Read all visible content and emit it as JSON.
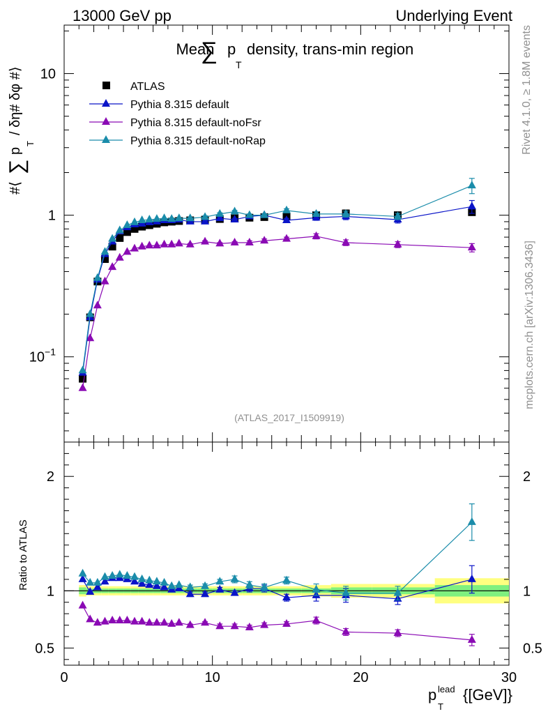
{
  "header": {
    "left": "13000 GeV pp",
    "right": "Underlying Event"
  },
  "side_labels": {
    "rivet": "Rivet 4.1.0, ≥ 1.8M events",
    "mcplots": "mcplots.cern.ch [arXiv:1306.3436]"
  },
  "colors": {
    "atlas": "#000000",
    "default": "#0a14c8",
    "nofsr": "#8a0ab4",
    "norap": "#1a8caa",
    "band_inner": "#7ff07f",
    "band_outer": "#ffff80"
  },
  "chart_data": [
    {
      "panel": "main",
      "type": "scatter",
      "title_prefix": "Mean",
      "title_sum": "∑",
      "title_p": "p",
      "title_sub": "T",
      "title_suffix": "density, trans-min region",
      "ylabel_parts": [
        "#⟨",
        "∑",
        "p",
        "T",
        "/ δη# δφ #⟩"
      ],
      "yscale": "log",
      "ylim": [
        0.025,
        22
      ],
      "xlim": [
        0,
        30
      ],
      "yticks": [
        {
          "v": 10,
          "base": "10",
          "exp": ""
        },
        {
          "v": 1,
          "base": "1",
          "exp": ""
        },
        {
          "v": 0.1,
          "base": "10",
          "exp": "−1"
        }
      ],
      "watermark": "(ATLAS_2017_I1509919)",
      "legend": [
        "ATLAS",
        "Pythia 8.315 default",
        "Pythia 8.315 default-noFsr",
        "Pythia 8.315 default-noRap"
      ],
      "x": [
        1.25,
        1.75,
        2.25,
        2.75,
        3.25,
        3.75,
        4.25,
        4.75,
        5.25,
        5.75,
        6.25,
        6.75,
        7.25,
        7.75,
        8.5,
        9.5,
        10.5,
        11.5,
        12.5,
        13.5,
        15,
        17,
        19,
        22.5,
        27.5
      ],
      "series": [
        {
          "name": "ATLAS",
          "key": "atlas",
          "marker": "square",
          "values": [
            0.07,
            0.19,
            0.34,
            0.49,
            0.6,
            0.69,
            0.76,
            0.8,
            0.83,
            0.85,
            0.87,
            0.89,
            0.9,
            0.91,
            0.92,
            0.93,
            0.94,
            0.95,
            0.96,
            0.97,
            0.98,
            1.0,
            1.03,
            1.0,
            1.05
          ]
        },
        {
          "name": "Pythia 8.315 default",
          "key": "default",
          "marker": "triangle",
          "values": [
            0.077,
            0.19,
            0.35,
            0.53,
            0.65,
            0.77,
            0.82,
            0.86,
            0.87,
            0.89,
            0.9,
            0.92,
            0.92,
            0.93,
            0.9,
            0.9,
            0.95,
            0.93,
            0.98,
            1.0,
            0.92,
            0.96,
            0.98,
            0.93,
            1.15
          ],
          "errors": [
            0,
            0,
            0,
            0,
            0,
            0,
            0,
            0,
            0,
            0,
            0,
            0,
            0,
            0,
            0.01,
            0.02,
            0.02,
            0.02,
            0.02,
            0.02,
            0.03,
            0.04,
            0.05,
            0.05,
            0.12
          ]
        },
        {
          "name": "Pythia 8.315 default-noFsr",
          "key": "nofsr",
          "marker": "triangle",
          "values": [
            0.06,
            0.135,
            0.23,
            0.34,
            0.43,
            0.5,
            0.55,
            0.58,
            0.6,
            0.61,
            0.61,
            0.62,
            0.62,
            0.63,
            0.62,
            0.65,
            0.63,
            0.64,
            0.64,
            0.66,
            0.68,
            0.71,
            0.64,
            0.62,
            0.59
          ],
          "errors": [
            0,
            0,
            0,
            0,
            0,
            0,
            0,
            0,
            0,
            0,
            0,
            0,
            0,
            0,
            0.01,
            0.01,
            0.01,
            0.01,
            0.02,
            0.02,
            0.02,
            0.03,
            0.03,
            0.03,
            0.04
          ]
        },
        {
          "name": "Pythia 8.315 default-noRap",
          "key": "norap",
          "marker": "triangle",
          "values": [
            0.08,
            0.2,
            0.36,
            0.55,
            0.68,
            0.78,
            0.85,
            0.89,
            0.92,
            0.93,
            0.94,
            0.95,
            0.94,
            0.95,
            0.95,
            0.97,
            1.02,
            1.06,
            1.0,
            1.0,
            1.08,
            1.02,
            1.02,
            0.98,
            1.62
          ],
          "errors": [
            0,
            0,
            0,
            0,
            0,
            0,
            0,
            0,
            0,
            0,
            0,
            0,
            0,
            0,
            0.01,
            0.02,
            0.02,
            0.02,
            0.02,
            0.02,
            0.03,
            0.04,
            0.05,
            0.05,
            0.2
          ]
        }
      ]
    },
    {
      "panel": "ratio",
      "type": "scatter",
      "ylabel": "Ratio to ATLAS",
      "yscale": "linear",
      "ylim": [
        0.35,
        2.3
      ],
      "xlim": [
        0,
        30
      ],
      "xlabel_p": "p",
      "xlabel_sup": "lead",
      "xlabel_sub": "T",
      "xlabel_unit": "{[GeV]}",
      "xticks": [
        0,
        10,
        20,
        30
      ],
      "yticks": [
        0.5,
        1,
        2
      ],
      "x": [
        1.25,
        1.75,
        2.25,
        2.75,
        3.25,
        3.75,
        4.25,
        4.75,
        5.25,
        5.75,
        6.25,
        6.75,
        7.25,
        7.75,
        8.5,
        9.5,
        10.5,
        11.5,
        12.5,
        13.5,
        15,
        17,
        19,
        22.5,
        27.5
      ],
      "band_inner": [
        0.03,
        0.02,
        0.02,
        0.02,
        0.02,
        0.02,
        0.02,
        0.02,
        0.02,
        0.02,
        0.02,
        0.02,
        0.02,
        0.02,
        0.02,
        0.02,
        0.02,
        0.02,
        0.02,
        0.02,
        0.02,
        0.02,
        0.03,
        0.03,
        0.05
      ],
      "band_outer": [
        0.05,
        0.04,
        0.04,
        0.04,
        0.04,
        0.04,
        0.04,
        0.04,
        0.04,
        0.04,
        0.04,
        0.04,
        0.04,
        0.04,
        0.04,
        0.04,
        0.04,
        0.04,
        0.04,
        0.04,
        0.04,
        0.05,
        0.06,
        0.06,
        0.11
      ],
      "series": [
        {
          "name": "Pythia 8.315 default",
          "key": "default",
          "values": [
            1.1,
            0.99,
            1.03,
            1.08,
            1.11,
            1.11,
            1.1,
            1.08,
            1.06,
            1.05,
            1.04,
            1.03,
            1.01,
            1.02,
            0.97,
            0.97,
            1.01,
            0.98,
            1.02,
            1.02,
            0.94,
            0.96,
            0.96,
            0.93,
            1.1
          ],
          "errors": [
            0,
            0,
            0,
            0,
            0,
            0,
            0,
            0,
            0,
            0,
            0,
            0,
            0,
            0,
            0.02,
            0.02,
            0.02,
            0.02,
            0.03,
            0.03,
            0.03,
            0.05,
            0.06,
            0.05,
            0.12
          ]
        },
        {
          "name": "Pythia 8.315 default-noFsr",
          "key": "nofsr",
          "values": [
            0.87,
            0.75,
            0.72,
            0.73,
            0.74,
            0.74,
            0.74,
            0.73,
            0.73,
            0.72,
            0.72,
            0.72,
            0.71,
            0.72,
            0.7,
            0.72,
            0.69,
            0.69,
            0.68,
            0.7,
            0.71,
            0.74,
            0.64,
            0.63,
            0.57
          ],
          "errors": [
            0,
            0,
            0,
            0,
            0,
            0,
            0,
            0,
            0,
            0,
            0,
            0,
            0,
            0,
            0.01,
            0.01,
            0.02,
            0.02,
            0.02,
            0.02,
            0.02,
            0.03,
            0.03,
            0.03,
            0.05
          ]
        },
        {
          "name": "Pythia 8.315 default-noRap",
          "key": "norap",
          "values": [
            1.15,
            1.07,
            1.07,
            1.12,
            1.13,
            1.14,
            1.13,
            1.12,
            1.1,
            1.09,
            1.08,
            1.07,
            1.04,
            1.05,
            1.03,
            1.04,
            1.08,
            1.1,
            1.05,
            1.03,
            1.09,
            1.01,
            0.98,
            0.98,
            1.6
          ],
          "errors": [
            0,
            0,
            0,
            0,
            0,
            0,
            0,
            0,
            0,
            0,
            0,
            0,
            0,
            0,
            0.02,
            0.02,
            0.02,
            0.03,
            0.03,
            0.03,
            0.03,
            0.05,
            0.06,
            0.06,
            0.16
          ]
        }
      ]
    }
  ]
}
